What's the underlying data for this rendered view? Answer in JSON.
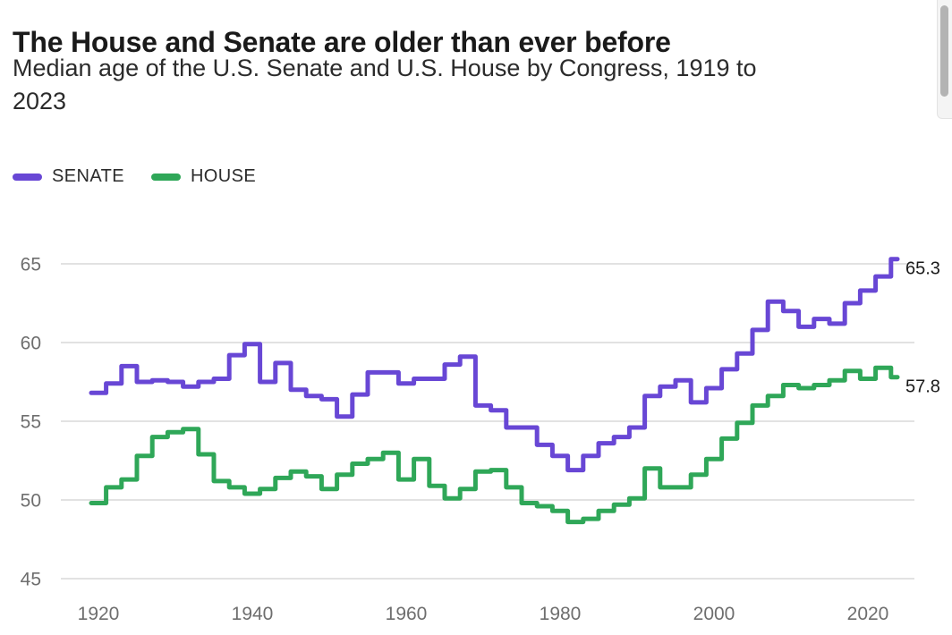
{
  "header": {
    "title": "The House and Senate are older than ever before",
    "subtitle": "Median age of the U.S. Senate and U.S. House by Congress, 1919 to 2023",
    "subtitle_lines": [
      "Median age of the U.S. Senate and U.S. House by Congress, 1919 to",
      "2023"
    ]
  },
  "legend": {
    "items": [
      {
        "id": "senate",
        "label": "SENATE",
        "color": "#6847d5"
      },
      {
        "id": "house",
        "label": "HOUSE",
        "color": "#2fa758"
      }
    ]
  },
  "colors": {
    "gridline": "#d8d8d8",
    "tick_label": "#6e6e6e",
    "title": "#1a1a1a",
    "senate": "#6847d5",
    "house": "#2fa758",
    "end_label": "#1a1a1a"
  },
  "chart_data": {
    "type": "line",
    "step": true,
    "title": "The House and Senate are older than ever before",
    "xlabel": "",
    "ylabel": "",
    "xlim": [
      1917,
      2026
    ],
    "ylim": [
      45,
      67
    ],
    "grid": "horizontal",
    "legend_position": "top-left",
    "xticks": [
      1920,
      1940,
      1960,
      1980,
      2000,
      2020
    ],
    "yticks": [
      45,
      50,
      55,
      60,
      65
    ],
    "years": [
      1919,
      1921,
      1923,
      1925,
      1927,
      1929,
      1931,
      1933,
      1935,
      1937,
      1939,
      1941,
      1943,
      1945,
      1947,
      1949,
      1951,
      1953,
      1955,
      1957,
      1959,
      1961,
      1963,
      1965,
      1967,
      1969,
      1971,
      1973,
      1975,
      1977,
      1979,
      1981,
      1983,
      1985,
      1987,
      1989,
      1991,
      1993,
      1995,
      1997,
      1999,
      2001,
      2003,
      2005,
      2007,
      2009,
      2011,
      2013,
      2015,
      2017,
      2019,
      2021,
      2023
    ],
    "series": [
      {
        "id": "senate",
        "name": "SENATE",
        "color": "#6847d5",
        "end_label": "65.3",
        "values": [
          56.8,
          57.4,
          58.5,
          57.5,
          57.6,
          57.5,
          57.2,
          57.5,
          57.7,
          59.2,
          59.9,
          57.5,
          58.7,
          57.0,
          56.6,
          56.4,
          55.3,
          56.7,
          58.1,
          58.1,
          57.4,
          57.7,
          57.7,
          58.6,
          59.1,
          56.0,
          55.7,
          54.6,
          54.6,
          53.5,
          52.8,
          51.9,
          52.8,
          53.6,
          54.0,
          54.6,
          56.6,
          57.2,
          57.6,
          56.2,
          57.1,
          58.3,
          59.3,
          60.8,
          62.6,
          62.0,
          61.0,
          61.5,
          61.2,
          62.5,
          63.3,
          64.2,
          65.3
        ]
      },
      {
        "id": "house",
        "name": "HOUSE",
        "color": "#2fa758",
        "end_label": "57.8",
        "values": [
          49.8,
          50.8,
          51.3,
          52.8,
          54.0,
          54.3,
          54.5,
          52.9,
          51.2,
          50.8,
          50.4,
          50.7,
          51.4,
          51.8,
          51.5,
          50.7,
          51.6,
          52.3,
          52.6,
          53.0,
          51.3,
          52.6,
          50.9,
          50.1,
          50.7,
          51.8,
          51.9,
          50.8,
          49.8,
          49.6,
          49.3,
          48.6,
          48.8,
          49.3,
          49.7,
          50.1,
          52.0,
          50.8,
          50.8,
          51.6,
          52.6,
          53.9,
          54.9,
          56.0,
          56.6,
          57.3,
          57.1,
          57.3,
          57.6,
          58.2,
          57.7,
          58.4,
          57.8
        ]
      }
    ]
  }
}
